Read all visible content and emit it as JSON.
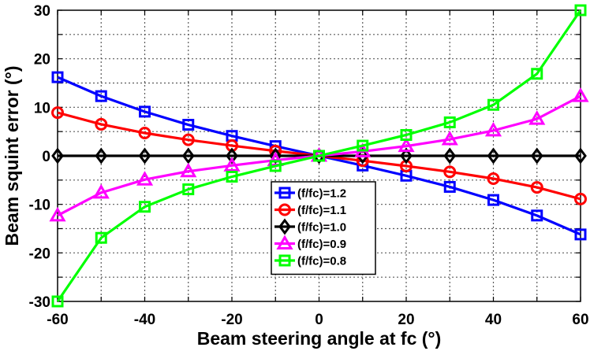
{
  "chart_data": {
    "type": "line",
    "title": "",
    "xlabel": "Beam steering angle at fc (°)",
    "ylabel": "Beam squint error (°)",
    "xlim": [
      -60,
      60
    ],
    "ylim": [
      -30,
      30
    ],
    "xticks": [
      -60,
      -40,
      -20,
      0,
      20,
      40,
      60
    ],
    "yticks": [
      -30,
      -20,
      -10,
      0,
      10,
      20,
      30
    ],
    "grid": true,
    "legend_position": "center",
    "x": [
      -60,
      -50,
      -40,
      -30,
      -20,
      -10,
      0,
      10,
      20,
      30,
      40,
      50,
      60
    ],
    "series": [
      {
        "name": "(f/fc)=1.2",
        "color": "#0000ff",
        "marker": "square",
        "values": [
          16.2,
          12.3,
          9.1,
          6.4,
          4.1,
          2.0,
          0,
          -2.0,
          -4.1,
          -6.4,
          -9.1,
          -12.3,
          -16.2
        ]
      },
      {
        "name": "(f/fc)=1.1",
        "color": "#ff0000",
        "marker": "circle",
        "values": [
          8.9,
          6.5,
          4.7,
          3.3,
          2.1,
          1.0,
          0,
          -1.0,
          -2.1,
          -3.3,
          -4.7,
          -6.5,
          -8.9
        ]
      },
      {
        "name": "(f/fc)=1.0",
        "color": "#000000",
        "marker": "diamond",
        "values": [
          0,
          0,
          0,
          0,
          0,
          0,
          0,
          0,
          0,
          0,
          0,
          0,
          0
        ]
      },
      {
        "name": "(f/fc)=0.9",
        "color": "#ff00ff",
        "marker": "triangle",
        "values": [
          -12.3,
          -7.6,
          -4.9,
          -3.2,
          -2.0,
          -0.9,
          0,
          0.9,
          2.0,
          3.4,
          5.2,
          7.6,
          12.3
        ]
      },
      {
        "name": "(f/fc)=0.8",
        "color": "#00ff00",
        "marker": "square",
        "values": [
          -30.0,
          -16.9,
          -10.5,
          -6.9,
          -4.3,
          -2.1,
          0,
          2.1,
          4.3,
          6.9,
          10.5,
          16.9,
          30.0
        ]
      }
    ]
  }
}
